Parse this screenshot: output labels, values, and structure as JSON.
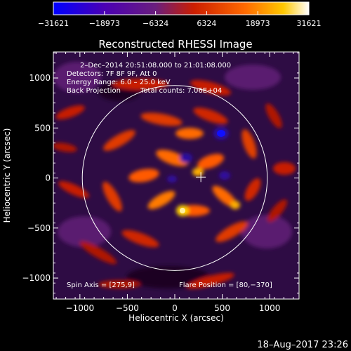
{
  "chart_data": {
    "type": "heatmap",
    "title": "Reconstructed RHESSI Image",
    "xlabel": "Heliocentric X (arcsec)",
    "ylabel": "Heliocentric Y (arcsec)",
    "xlim": [
      -1280,
      1310
    ],
    "ylim": [
      -1210,
      1260
    ],
    "xticks": [
      -1000,
      -500,
      0,
      500,
      1000
    ],
    "yticks": [
      -1000,
      -500,
      0,
      500,
      1000
    ],
    "xtick_labels": [
      "−1000",
      "−500",
      "0",
      "500",
      "1000"
    ],
    "ytick_labels": [
      "−1000",
      "−500",
      "0",
      "500",
      "1000"
    ],
    "colorbar": {
      "ticks": [
        "−31621",
        "−18973",
        "−6324",
        "6324",
        "18973",
        "31621"
      ],
      "min": -31621,
      "max": 31621,
      "colors": [
        "#0000ff",
        "#4b00b4",
        "#6a1e7e",
        "#cc1e00",
        "#ff6a00",
        "#ffc800",
        "#ffffff"
      ]
    },
    "annotations": {
      "line1": "2–Dec–2014 20:51:08.000 to 21:01:08.000",
      "line2": "Detectors: 7F 8F 9F, Att 0",
      "line3": "Energy Range: 6.0 – 25.0 keV",
      "line4_left": "Back Projection",
      "line4_right": "Total counts: 7.06E+04",
      "spin_axis": "Spin Axis = [275,9]",
      "flare_position": "Flare Position = [80,−370]"
    },
    "solar_disk_radius_arcsec": 975,
    "marker_position": [
      275,
      9
    ],
    "timestamp": "18–Aug–2017 23:26"
  }
}
